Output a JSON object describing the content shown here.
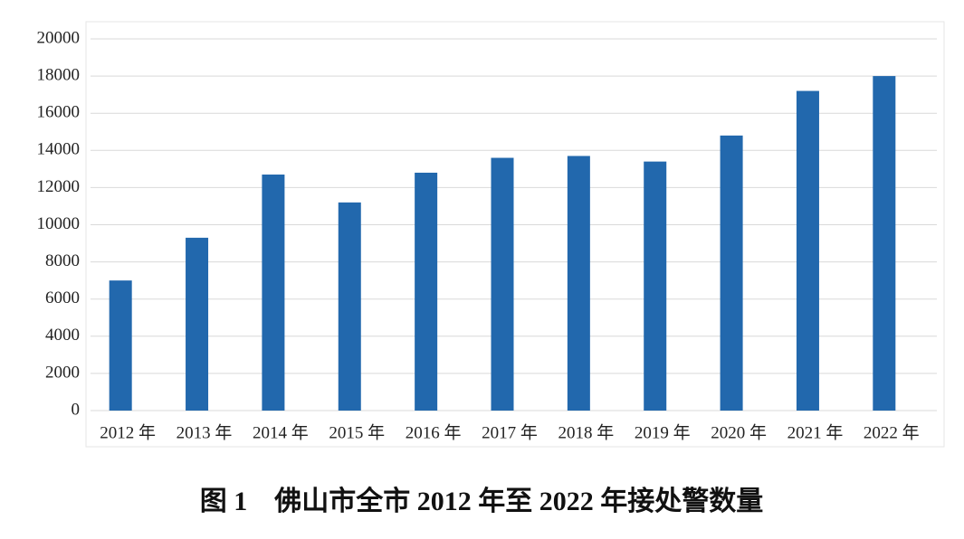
{
  "chart_data": {
    "type": "bar",
    "title": "图 1　佛山市全市 2012 年至 2022 年接处警数量",
    "categories": [
      "2012 年",
      "2013 年",
      "2014 年",
      "2015 年",
      "2016 年",
      "2017 年",
      "2018 年",
      "2019 年",
      "2020 年",
      "2021 年",
      "2022 年"
    ],
    "values": [
      7000,
      9300,
      12700,
      11200,
      12800,
      13600,
      13700,
      13400,
      14800,
      17200,
      18000
    ],
    "color": "#2268ad",
    "ylim": [
      0,
      20000
    ],
    "yticks": [
      0,
      2000,
      4000,
      6000,
      8000,
      10000,
      12000,
      14000,
      16000,
      18000,
      20000
    ],
    "grid": true
  }
}
